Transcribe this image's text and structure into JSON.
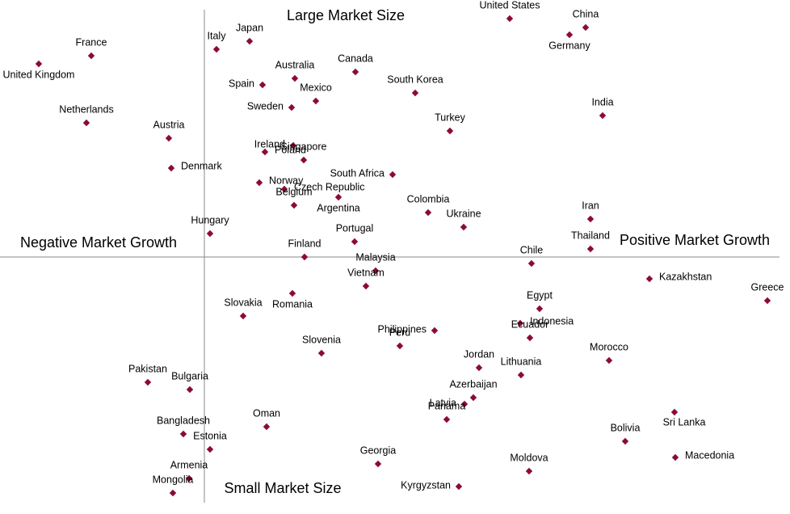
{
  "chart_data": {
    "type": "scatter",
    "color": "#8b0a3c",
    "annotations": [
      "Large Market Size",
      "Small Market Size",
      "Negative Market Growth",
      "Positive Market Growth"
    ],
    "labels": [
      "United States",
      "China",
      "Germany",
      "France",
      "United Kingdom",
      "Italy",
      "Japan",
      "Australia",
      "Canada",
      "Spain",
      "Mexico",
      "South Korea",
      "Sweden",
      "Netherlands",
      "India",
      "Turkey",
      "Austria",
      "Ireland",
      "Poland",
      "Singapore",
      "Denmark",
      "South Africa",
      "Norway",
      "Czech Republic",
      "Argentina",
      "Belgium",
      "Colombia",
      "Iran",
      "Ukraine",
      "Hungary",
      "Thailand",
      "Portugal",
      "Finland",
      "Chile",
      "Kazakhstan",
      "Malaysia",
      "Romania",
      "Vietnam",
      "Greece",
      "Egypt",
      "Slovakia",
      "Philippines",
      "Indonesia",
      "Ecuador",
      "Peru",
      "Slovenia",
      "Jordan",
      "Morocco",
      "Lithuania",
      "Pakistan",
      "Bulgaria",
      "Azerbaijan",
      "Sri Lanka",
      "Latvia",
      "Panama",
      "Bangladesh",
      "Oman",
      "Bolivia",
      "Macedonia",
      "Estonia",
      "Georgia",
      "Moldova",
      "Armenia",
      "Kyrgyzstan",
      "Mongolia"
    ],
    "x": [
      37.8,
      47.2,
      45.2,
      -14.0,
      -20.5,
      1.5,
      5.6,
      11.2,
      18.7,
      7.2,
      13.8,
      26.1,
      10.8,
      -14.6,
      49.3,
      30.4,
      -4.4,
      11.0,
      7.5,
      12.3,
      -4.1,
      23.3,
      6.8,
      9.9,
      16.6,
      11.1,
      27.7,
      47.8,
      32.1,
      0.7,
      47.8,
      18.6,
      12.4,
      40.5,
      55.1,
      21.2,
      10.9,
      20.0,
      69.7,
      41.5,
      4.8,
      28.5,
      39.1,
      40.3,
      24.2,
      14.5,
      34.0,
      50.1,
      39.2,
      -7.0,
      -1.8,
      33.3,
      58.2,
      32.2,
      30.0,
      -2.6,
      7.7,
      52.1,
      58.3,
      0.7,
      21.5,
      40.2,
      -1.9,
      31.5,
      -3.9
    ],
    "values": [
      29.5,
      28.4,
      27.5,
      24.9,
      23.9,
      25.7,
      26.7,
      22.1,
      22.9,
      21.3,
      19.3,
      20.3,
      18.5,
      16.6,
      17.5,
      15.6,
      14.7,
      13.8,
      13.0,
      12.0,
      11.0,
      10.2,
      9.2,
      8.4,
      7.4,
      6.4,
      5.5,
      4.7,
      3.7,
      2.9,
      1.0,
      1.9,
      0.0,
      -0.8,
      -2.7,
      -1.7,
      -4.5,
      -3.6,
      -5.4,
      -6.4,
      -7.3,
      -9.1,
      -8.2,
      -10.0,
      -11.0,
      -11.9,
      -13.7,
      -12.8,
      -14.6,
      -15.5,
      -16.4,
      -17.4,
      -19.2,
      -18.2,
      -20.1,
      -21.9,
      -21.0,
      -22.8,
      -24.8,
      -23.8,
      -25.6,
      -26.5,
      -27.4,
      -28.4,
      -29.2
    ],
    "xlim": [
      -25.3,
      72.5
    ],
    "ylim": [
      -31.8,
      31.8
    ]
  }
}
